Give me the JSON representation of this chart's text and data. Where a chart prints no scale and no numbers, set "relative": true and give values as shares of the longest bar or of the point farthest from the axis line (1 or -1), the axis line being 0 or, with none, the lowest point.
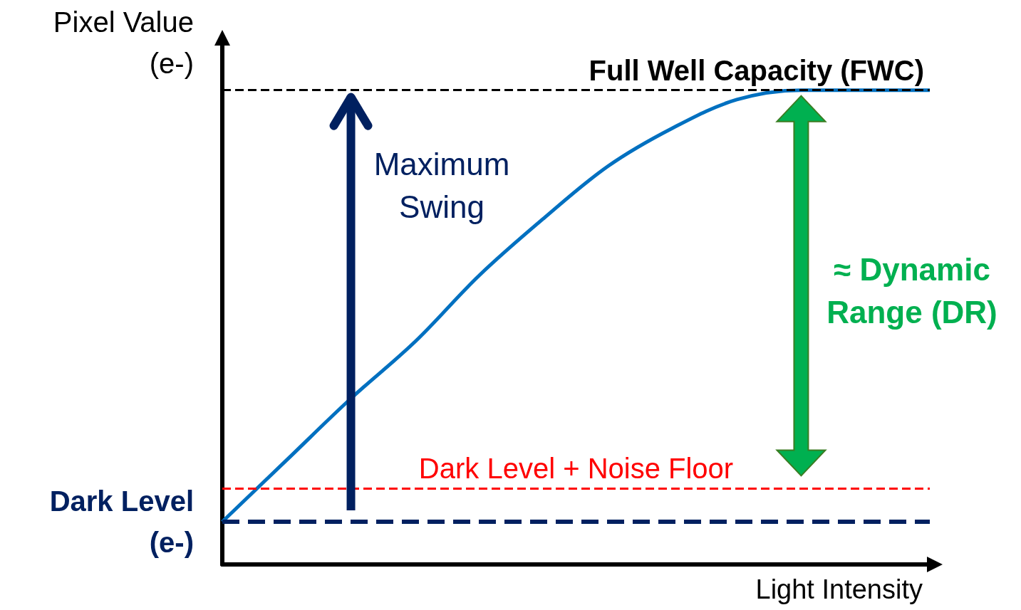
{
  "chart_data": {
    "type": "line",
    "relative": true,
    "xlabel": "Light Intensity",
    "ylabel": "Pixel Value\n(e-)",
    "categories": [
      null,
      null,
      null,
      null,
      null,
      null,
      null,
      null,
      null,
      null,
      null,
      null
    ],
    "series": [
      {
        "color": "#0070c0",
        "values": [
          0.09,
          0.22,
          0.35,
          0.47,
          0.61,
          0.73,
          0.84,
          0.92,
          0.98,
          1.0,
          1.0,
          1.0
        ]
      }
    ],
    "ref_lines": [
      {
        "axis": "y",
        "value": 1.0,
        "label": "Full Well Capacity (FWC)",
        "color": "#000000",
        "line_style": "dashed"
      },
      {
        "axis": "y",
        "value": 0.16,
        "label": "Dark Level + Noise Floor",
        "color": "#ff0000",
        "line_style": "dashed"
      },
      {
        "axis": "y",
        "value": 0.09,
        "label": "Dark Level\n(e-)",
        "color": "#002060",
        "line_style": "dashed"
      }
    ],
    "annotations": [
      "Maximum\nSwing",
      "≈ Dynamic\nRange (DR)"
    ],
    "grid": false,
    "marker": "none",
    "line_style": "solid"
  }
}
